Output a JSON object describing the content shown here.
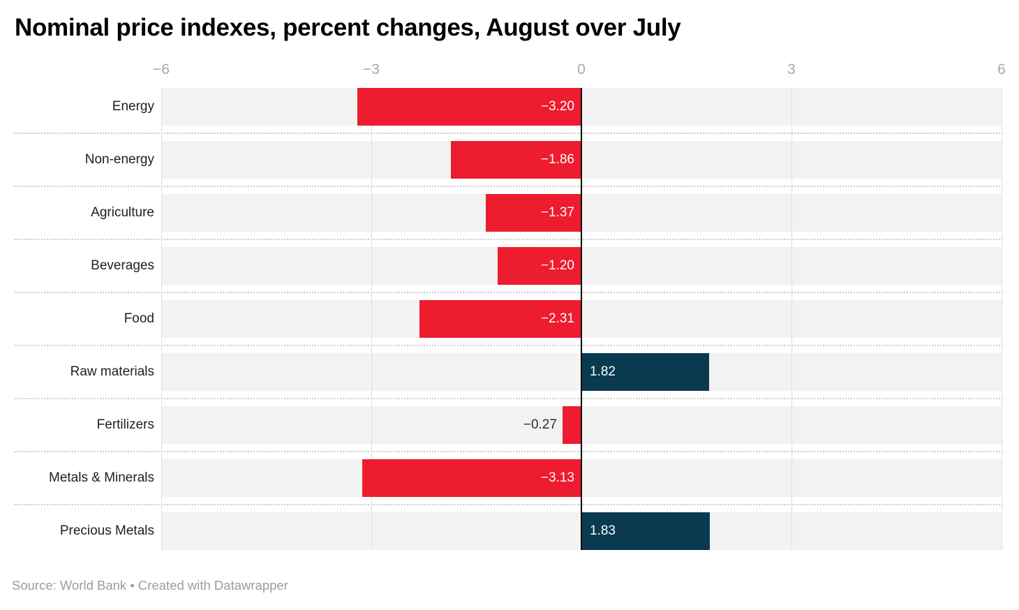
{
  "title": "Nominal price indexes, percent changes, August over July",
  "footer": {
    "text": "Source: World Bank • Created with Datawrapper"
  },
  "chart_data": {
    "type": "bar",
    "orientation": "horizontal",
    "title": "Nominal price indexes, percent changes, August over July",
    "xlabel": "",
    "ylabel": "",
    "xlim": [
      -6,
      6
    ],
    "x_ticks": [
      -6,
      -3,
      0,
      3,
      6
    ],
    "grid": "vertical",
    "legend": "none",
    "categories": [
      "Energy",
      "Non-energy",
      "Agriculture",
      "Beverages",
      "Food",
      "Raw materials",
      "Fertilizers",
      "Metals & Minerals",
      "Precious Metals"
    ],
    "values": [
      -3.2,
      -1.86,
      -1.37,
      -1.2,
      -2.31,
      1.82,
      -0.27,
      -3.13,
      1.83
    ],
    "source": "World Bank",
    "colors": {
      "negative_bar": "#ed1c2e",
      "positive_bar": "#093a50",
      "row_band": "#f2f2f2",
      "zero_line": "#000000",
      "gridline": "#e0e0e0",
      "tick_label": "#a6a6a6",
      "category_label": "#202020",
      "value_label_inside": "#ffffff",
      "value_label_outside": "#2b2b2b",
      "separator": "#c9c9c9",
      "footer_text": "#9c9c9c"
    }
  }
}
